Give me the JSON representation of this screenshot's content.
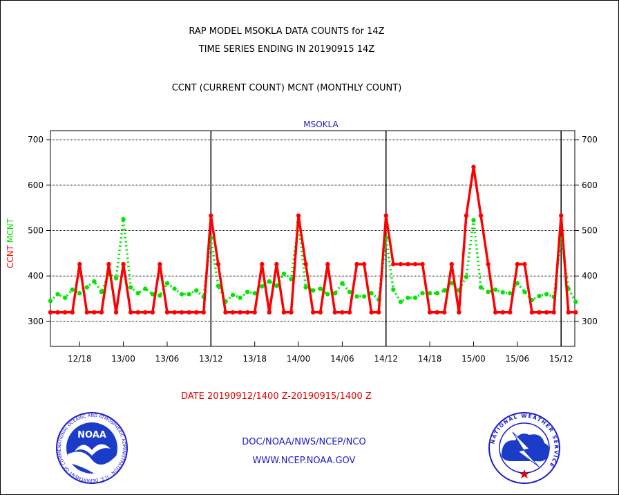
{
  "header": {
    "line1": "RAP MODEL MSOKLA DATA COUNTS for 14Z",
    "line2": "TIME SERIES ENDING IN 20190915 14Z",
    "line3": "CCNT (CURRENT COUNT) MCNT (MONTHLY COUNT)"
  },
  "footer": {
    "date_range": "DATE 20190912/1400 Z-20190915/1400 Z",
    "credit1": "DOC/NOAA/NWS/NCEP/NCO",
    "credit2": "WWW.NCEP.NOAA.GOV"
  },
  "logos": {
    "noaa_text": "NOAA",
    "noaa_ring": "NATIONAL OCEANIC AND ATMOSPHERIC ADMINISTRATION · U.S. DEPARTMENT OF COMMERCE",
    "nws_ring": "NATIONAL WEATHER SERVICE"
  },
  "colors": {
    "ccnt": "#ff0000",
    "mcnt": "#00e600",
    "panel_label": "#1a1ad0",
    "credit": "#1a1ad0"
  },
  "chart_data": {
    "type": "line",
    "title": "MSOKLA",
    "ylabel": [
      "CCNT",
      "MCNT"
    ],
    "xlabel": "DATE 20190912/1400 Z-20190915/1400 Z",
    "ylim": [
      245,
      720
    ],
    "yticks": [
      300,
      400,
      500,
      600,
      700
    ],
    "grid": true,
    "x_start": "12/14",
    "x_step_hours": 1,
    "x_ticks": [
      {
        "label": "12/18",
        "index": 4
      },
      {
        "label": "13/00",
        "index": 10
      },
      {
        "label": "13/06",
        "index": 16
      },
      {
        "label": "13/12",
        "index": 22
      },
      {
        "label": "13/18",
        "index": 28
      },
      {
        "label": "14/00",
        "index": 34
      },
      {
        "label": "14/06",
        "index": 40
      },
      {
        "label": "14/12",
        "index": 46
      },
      {
        "label": "14/18",
        "index": 52
      },
      {
        "label": "15/00",
        "index": 58
      },
      {
        "label": "15/06",
        "index": 64
      },
      {
        "label": "15/12",
        "index": 70
      }
    ],
    "day_markers": [
      22,
      46,
      70
    ],
    "series": [
      {
        "name": "CCNT",
        "color": "#ff0000",
        "style": "solid",
        "values": [
          320,
          320,
          320,
          320,
          426,
          320,
          320,
          320,
          426,
          320,
          426,
          320,
          320,
          320,
          320,
          426,
          320,
          320,
          320,
          320,
          320,
          320,
          533,
          426,
          320,
          320,
          320,
          320,
          320,
          426,
          320,
          426,
          320,
          320,
          533,
          426,
          320,
          320,
          426,
          320,
          320,
          320,
          426,
          426,
          320,
          320,
          533,
          426,
          426,
          426,
          426,
          426,
          320,
          320,
          320,
          426,
          320,
          533,
          640,
          533,
          426,
          320,
          320,
          320,
          426,
          426,
          320,
          320,
          320,
          320,
          533,
          320,
          320
        ]
      },
      {
        "name": "MCNT",
        "color": "#00e600",
        "style": "dotted",
        "values": [
          345,
          360,
          352,
          370,
          362,
          375,
          388,
          365,
          405,
          395,
          525,
          375,
          362,
          372,
          360,
          357,
          384,
          372,
          360,
          360,
          368,
          354,
          484,
          378,
          343,
          358,
          352,
          365,
          362,
          377,
          388,
          378,
          405,
          393,
          518,
          375,
          368,
          372,
          360,
          362,
          384,
          365,
          355,
          355,
          362,
          348,
          484,
          370,
          343,
          352,
          352,
          362,
          362,
          362,
          368,
          384,
          368,
          398,
          523,
          375,
          365,
          370,
          364,
          362,
          384,
          365,
          347,
          356,
          360,
          354,
          484,
          372,
          343
        ]
      }
    ]
  }
}
